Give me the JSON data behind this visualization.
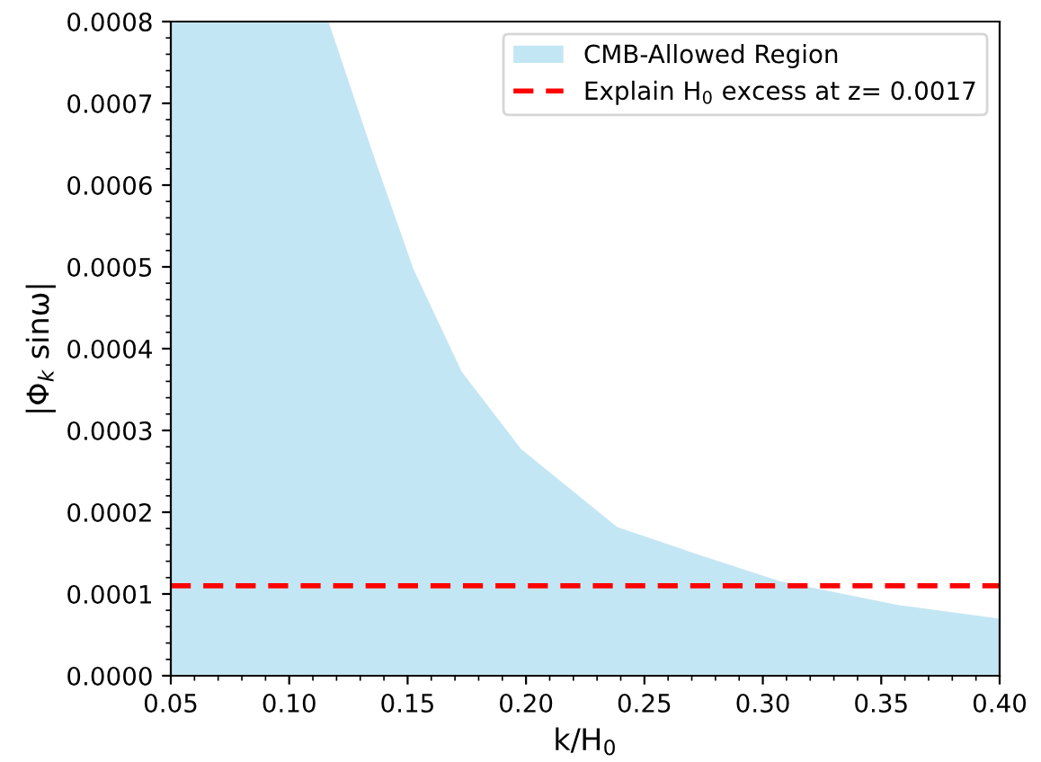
{
  "chart_data": {
    "type": "area",
    "xlabel": "k/H$_{0}$",
    "ylabel": "|Φ$_{k}$ sinω|",
    "series": [
      {
        "name": "CMB-Allowed Region",
        "color": "#c3e6f4",
        "x": [
          0.05,
          0.1166,
          0.1348,
          0.1525,
          0.1728,
          0.198,
          0.2385,
          0.2688,
          0.3068,
          0.3575,
          0.4
        ],
        "values": [
          0.0008,
          0.0008,
          0.000643,
          0.000497,
          0.000372,
          0.000277,
          0.000182,
          0.000152,
          0.000116,
          8.64e-05,
          6.97e-05
        ]
      }
    ],
    "ref_lines": [
      {
        "axis": "y",
        "value": 0.00011,
        "label": "Explain H$_{0}$ excess at z= 0.0017",
        "color": "#ff0000",
        "line_style": "dashed"
      }
    ],
    "xlim": [
      0.05,
      0.4
    ],
    "ylim": [
      0,
      0.0008
    ],
    "xticks": [
      {
        "value": 0.05,
        "label": "0.05"
      },
      {
        "value": 0.1,
        "label": "0.10"
      },
      {
        "value": 0.15,
        "label": "0.15"
      },
      {
        "value": 0.2,
        "label": "0.20"
      },
      {
        "value": 0.25,
        "label": "0.25"
      },
      {
        "value": 0.3,
        "label": "0.30"
      },
      {
        "value": 0.35,
        "label": "0.35"
      },
      {
        "value": 0.4,
        "label": "0.40"
      }
    ],
    "yticks": [
      {
        "value": 0,
        "label": "0.0000"
      },
      {
        "value": 0.0001,
        "label": "0.0001"
      },
      {
        "value": 0.0002,
        "label": "0.0002"
      },
      {
        "value": 0.0003,
        "label": "0.0003"
      },
      {
        "value": 0.0004,
        "label": "0.0004"
      },
      {
        "value": 0.0005,
        "label": "0.0005"
      },
      {
        "value": 0.0006,
        "label": "0.0006"
      },
      {
        "value": 0.0007,
        "label": "0.0007"
      },
      {
        "value": 0.0008,
        "label": "0.0008"
      }
    ],
    "grid": false,
    "legend": "top right"
  }
}
